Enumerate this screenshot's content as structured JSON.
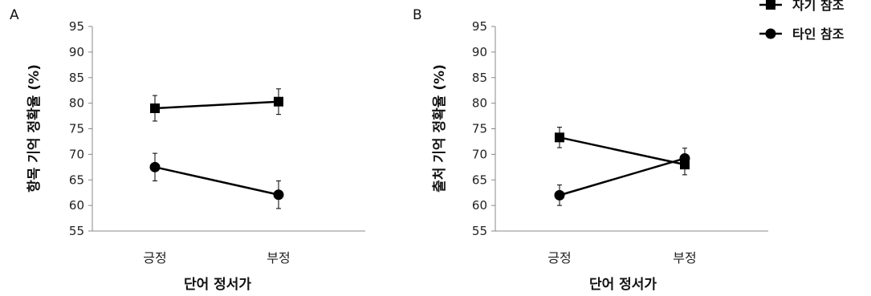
{
  "chart_data": [
    {
      "type": "line",
      "panel_label": "A",
      "categories": [
        "긍정",
        "부정"
      ],
      "xlabel": "단어 정서가",
      "ylabel": "항목 기억 정확율 (%)",
      "ylim": [
        55,
        95
      ],
      "yticks": [
        55,
        60,
        65,
        70,
        75,
        80,
        85,
        90,
        95
      ],
      "series": [
        {
          "name": "자기 참조",
          "marker": "square",
          "values": [
            79.0,
            80.3
          ],
          "errors": [
            2.5,
            2.5
          ]
        },
        {
          "name": "타인 참조",
          "marker": "circle",
          "values": [
            67.5,
            62.1
          ],
          "errors": [
            2.7,
            2.7
          ]
        }
      ]
    },
    {
      "type": "line",
      "panel_label": "B",
      "categories": [
        "긍정",
        "부정"
      ],
      "xlabel": "단어 정서가",
      "ylabel": "출처 기억 정확율 (%)",
      "ylim": [
        55,
        95
      ],
      "yticks": [
        55,
        60,
        65,
        70,
        75,
        80,
        85,
        90,
        95
      ],
      "series": [
        {
          "name": "자기 참조",
          "marker": "square",
          "values": [
            73.3,
            68.0
          ],
          "errors": [
            2.0,
            2.0
          ]
        },
        {
          "name": "타인 참조",
          "marker": "circle",
          "values": [
            62.0,
            69.2
          ],
          "errors": [
            2.0,
            2.0
          ]
        }
      ]
    }
  ],
  "legend": {
    "position": "top-right",
    "items": [
      {
        "label": "자기 참조",
        "marker": "square"
      },
      {
        "label": "타인 참조",
        "marker": "circle"
      }
    ]
  },
  "colors": {
    "line": "#000000",
    "axis": "#888888"
  }
}
